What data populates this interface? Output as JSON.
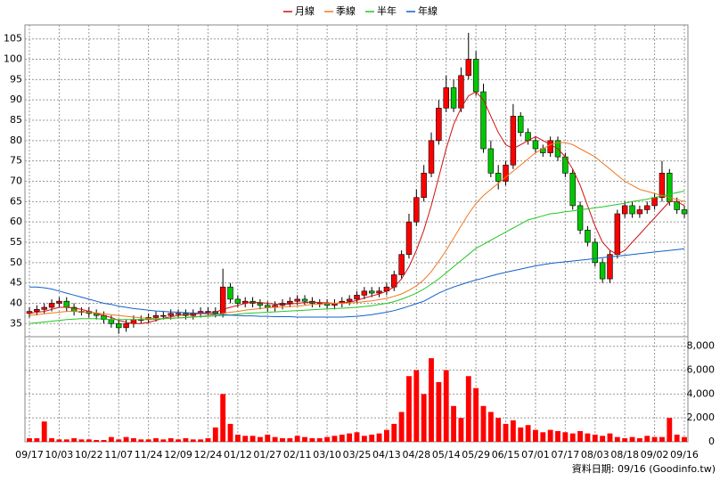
{
  "chart_data": {
    "type": "candlestick",
    "categories": [
      "09/17",
      null,
      null,
      null,
      "10/03",
      null,
      null,
      null,
      "10/22",
      null,
      null,
      null,
      "11/07",
      null,
      null,
      null,
      "11/24",
      null,
      null,
      null,
      "12/09",
      null,
      null,
      null,
      "12/24",
      null,
      null,
      null,
      "01/12",
      null,
      null,
      null,
      "01/27",
      null,
      null,
      null,
      "02/11",
      null,
      null,
      null,
      "03/10",
      null,
      null,
      null,
      "03/25",
      null,
      null,
      null,
      "04/13",
      null,
      null,
      null,
      "04/28",
      null,
      null,
      null,
      "05/14",
      null,
      null,
      null,
      "05/29",
      null,
      null,
      null,
      "06/15",
      null,
      null,
      null,
      "07/01",
      null,
      null,
      null,
      "07/17",
      null,
      null,
      null,
      "08/03",
      null,
      null,
      null,
      "08/18",
      null,
      null,
      null,
      "09/02",
      null,
      null,
      null,
      "09/16"
    ],
    "open": [
      37.5,
      38,
      38.5,
      39,
      40,
      40.5,
      39,
      38,
      38,
      37.5,
      37,
      36,
      35,
      34,
      35,
      36,
      36,
      36.5,
      37,
      37,
      37.5,
      37.5,
      37,
      37.5,
      38,
      38,
      37.5,
      44,
      41,
      40,
      40.5,
      40,
      39.5,
      39,
      39.5,
      40,
      40.5,
      41,
      40.5,
      40,
      40,
      39.5,
      40,
      40.5,
      41,
      42,
      43,
      42.5,
      43,
      44,
      47,
      52,
      60,
      66,
      72,
      80,
      88,
      93,
      88,
      96,
      100,
      92,
      78,
      72,
      70,
      74,
      86,
      82,
      80,
      78,
      77,
      80,
      76,
      72,
      64,
      58,
      55,
      50,
      46,
      52,
      62,
      64,
      62,
      63,
      64,
      66,
      72,
      65,
      63
    ],
    "high": [
      39,
      39.5,
      40,
      41,
      41.5,
      41.5,
      40,
      39,
      39,
      38.5,
      38,
      37,
      36,
      36,
      37,
      37,
      37.5,
      38,
      38,
      38.5,
      38.5,
      38.5,
      38.5,
      39,
      39,
      39,
      48.5,
      45,
      42,
      41.5,
      41.5,
      41,
      40.5,
      40.5,
      41,
      41.5,
      42,
      42,
      41.5,
      41,
      41,
      41,
      41.5,
      42,
      43,
      44,
      44,
      44,
      45,
      48,
      53,
      62,
      68,
      74,
      82,
      90,
      96,
      95,
      98,
      106.5,
      102,
      94,
      80,
      74,
      75,
      89,
      87,
      83,
      81,
      79,
      81,
      81,
      77,
      73,
      65,
      59,
      56,
      51,
      53,
      63,
      65,
      65,
      64,
      65,
      67,
      75,
      73,
      66,
      64
    ],
    "low": [
      36.5,
      37,
      37.5,
      38,
      39,
      38,
      37,
      37,
      36.5,
      36,
      35,
      34,
      32.5,
      33,
      34,
      35,
      35,
      35.5,
      36,
      36,
      36.5,
      36,
      36,
      36.5,
      37,
      36.5,
      36.5,
      40,
      39,
      39,
      39,
      38.5,
      38,
      38,
      38.5,
      39,
      39.5,
      39.5,
      39,
      39,
      38.5,
      38.5,
      39,
      39.5,
      40,
      41,
      41.5,
      41.5,
      42,
      43,
      46,
      51,
      59,
      65,
      71,
      79,
      87,
      87,
      87,
      95,
      91,
      77,
      71,
      68,
      69,
      73,
      81,
      79,
      77,
      76,
      76,
      75,
      71,
      63,
      57,
      54,
      49,
      45,
      45,
      51,
      61,
      61,
      61,
      62,
      63,
      65,
      64,
      62,
      61
    ],
    "close": [
      38,
      38.5,
      39,
      40,
      40.5,
      39,
      38,
      38,
      37.5,
      37,
      36,
      35,
      34,
      35,
      36,
      36,
      36.5,
      37,
      37,
      37.5,
      37.5,
      37,
      37.5,
      38,
      38,
      37.5,
      44,
      41,
      40,
      40.5,
      40,
      39.5,
      39,
      39.5,
      40,
      40.5,
      41,
      40.5,
      40,
      40,
      39.5,
      40,
      40.5,
      41,
      42,
      43,
      42.5,
      43,
      44,
      47,
      52,
      60,
      66,
      72,
      80,
      88,
      93,
      88,
      96,
      100,
      92,
      78,
      72,
      70,
      74,
      86,
      82,
      80,
      78,
      77,
      80,
      76,
      72,
      64,
      58,
      55,
      50,
      46,
      52,
      62,
      64,
      62,
      63,
      64,
      66,
      72,
      65,
      63,
      62
    ],
    "up_color": "#ff0000",
    "down_color": "#00c800",
    "series": [
      {
        "name": "月線",
        "color": "#d01010",
        "values": [
          37.5,
          37.8,
          38,
          38.5,
          39,
          39,
          38.8,
          38.5,
          38,
          37.5,
          37,
          36.5,
          35.8,
          35.3,
          35,
          35,
          35.3,
          35.8,
          36.3,
          36.7,
          37,
          37.2,
          37.3,
          37.5,
          37.7,
          37.8,
          38.5,
          39,
          39.5,
          40,
          40.3,
          40.2,
          40,
          39.8,
          39.7,
          39.8,
          40,
          40.2,
          40.3,
          40.2,
          40.1,
          40,
          40.1,
          40.3,
          40.7,
          41.3,
          41.8,
          42.3,
          43,
          44,
          46,
          49,
          53,
          58,
          64,
          71,
          78,
          84,
          88,
          91,
          92,
          90,
          86,
          82,
          79,
          78,
          79,
          80,
          81,
          80,
          79,
          78,
          76,
          73,
          69,
          64,
          59,
          55,
          53,
          52,
          53,
          55,
          57,
          59,
          61,
          63,
          65,
          65,
          64
        ]
      },
      {
        "name": "季線",
        "color": "#f07820",
        "values": [
          37,
          37.2,
          37.4,
          37.6,
          37.8,
          38,
          38,
          37.9,
          37.8,
          37.6,
          37.4,
          37.2,
          37,
          36.8,
          36.6,
          36.4,
          36.3,
          36.2,
          36.2,
          36.3,
          36.4,
          36.5,
          36.7,
          36.8,
          37,
          37.2,
          37.5,
          37.8,
          38,
          38.3,
          38.5,
          38.7,
          38.9,
          39,
          39.1,
          39.2,
          39.3,
          39.5,
          39.7,
          39.8,
          39.9,
          40,
          40,
          40.1,
          40.2,
          40.4,
          40.6,
          40.9,
          41.2,
          41.7,
          42.3,
          43.2,
          44.3,
          45.8,
          47.8,
          50.3,
          53,
          56,
          59,
          62,
          64.5,
          66.5,
          68,
          69.5,
          71,
          72.5,
          74,
          75.5,
          77,
          78,
          79,
          79.5,
          79.5,
          79,
          78,
          77,
          76,
          74.5,
          73,
          71.5,
          70,
          69,
          68,
          67.5,
          67,
          66.5,
          66,
          65.5,
          65
        ]
      },
      {
        "name": "半年",
        "color": "#20c820",
        "values": [
          35,
          35.2,
          35.4,
          35.6,
          35.8,
          36,
          36.1,
          36.2,
          36.2,
          36.2,
          36.1,
          36,
          36,
          36,
          36,
          36,
          36,
          36.1,
          36.2,
          36.3,
          36.4,
          36.5,
          36.6,
          36.7,
          36.8,
          36.9,
          37,
          37.1,
          37.3,
          37.5,
          37.6,
          37.7,
          37.8,
          37.9,
          38,
          38.1,
          38.2,
          38.3,
          38.4,
          38.5,
          38.6,
          38.7,
          38.8,
          38.9,
          39,
          39.2,
          39.4,
          39.7,
          40,
          40.4,
          41,
          41.7,
          42.5,
          43.5,
          44.7,
          46,
          47.5,
          49,
          50.5,
          52,
          53.5,
          54.5,
          55.5,
          56.5,
          57.5,
          58.5,
          59.5,
          60.5,
          61,
          61.5,
          62,
          62.2,
          62.5,
          62.7,
          63,
          63.2,
          63.5,
          63.7,
          64,
          64.3,
          64.6,
          65,
          65.3,
          65.6,
          66,
          66.4,
          66.8,
          67.2,
          67.6
        ]
      },
      {
        "name": "年線",
        "color": "#1060c8",
        "values": [
          44,
          44,
          43.8,
          43.5,
          43,
          42.5,
          42,
          41.5,
          41,
          40.5,
          40,
          39.7,
          39.3,
          39,
          38.7,
          38.5,
          38.3,
          38.1,
          38,
          37.9,
          37.8,
          37.7,
          37.6,
          37.5,
          37.4,
          37.3,
          37.2,
          37.1,
          37,
          36.9,
          36.9,
          36.8,
          36.8,
          36.7,
          36.7,
          36.7,
          36.6,
          36.6,
          36.6,
          36.6,
          36.6,
          36.6,
          36.6,
          36.7,
          36.8,
          37,
          37.2,
          37.5,
          37.8,
          38.2,
          38.7,
          39.3,
          39.9,
          40.5,
          41.5,
          42.5,
          43.3,
          44,
          44.6,
          45.2,
          45.7,
          46.2,
          46.7,
          47.2,
          47.6,
          48,
          48.4,
          48.8,
          49.2,
          49.5,
          49.8,
          50,
          50.2,
          50.4,
          50.6,
          50.8,
          51,
          51.2,
          51.4,
          51.6,
          51.8,
          52,
          52.2,
          52.4,
          52.6,
          52.8,
          53,
          53.2,
          53.4
        ]
      }
    ],
    "volume": {
      "color": "#ff0000",
      "values": [
        300,
        300,
        1700,
        300,
        200,
        200,
        300,
        200,
        200,
        150,
        150,
        400,
        200,
        400,
        300,
        200,
        200,
        300,
        200,
        300,
        200,
        300,
        200,
        200,
        300,
        1200,
        4000,
        1500,
        600,
        500,
        500,
        400,
        600,
        400,
        300,
        300,
        500,
        400,
        300,
        300,
        400,
        500,
        600,
        700,
        800,
        500,
        600,
        700,
        1000,
        1500,
        2500,
        5500,
        6000,
        4000,
        7000,
        5000,
        6000,
        3000,
        2000,
        5500,
        4500,
        3000,
        2500,
        2000,
        1500,
        1800,
        1200,
        1400,
        1000,
        800,
        1000,
        900,
        800,
        700,
        900,
        700,
        600,
        500,
        700,
        400,
        300,
        400,
        300,
        500,
        400,
        400,
        2000,
        600,
        400
      ]
    },
    "ylim": [
      32,
      108
    ],
    "yticks": [
      35,
      40,
      45,
      50,
      55,
      60,
      65,
      70,
      75,
      80,
      85,
      90,
      95,
      100,
      105
    ],
    "y2lim": [
      0,
      8800
    ],
    "y2ticks": [
      {
        "value": 0,
        "label": "0"
      },
      {
        "value": 2000,
        "label": "2,000"
      },
      {
        "value": 4000,
        "label": "4,000"
      },
      {
        "value": 6000,
        "label": "6,000"
      },
      {
        "value": 8000,
        "label": "8,000"
      }
    ],
    "grid": true,
    "source_note": "資料日期: 09/16 (Goodinfo.tw)"
  }
}
